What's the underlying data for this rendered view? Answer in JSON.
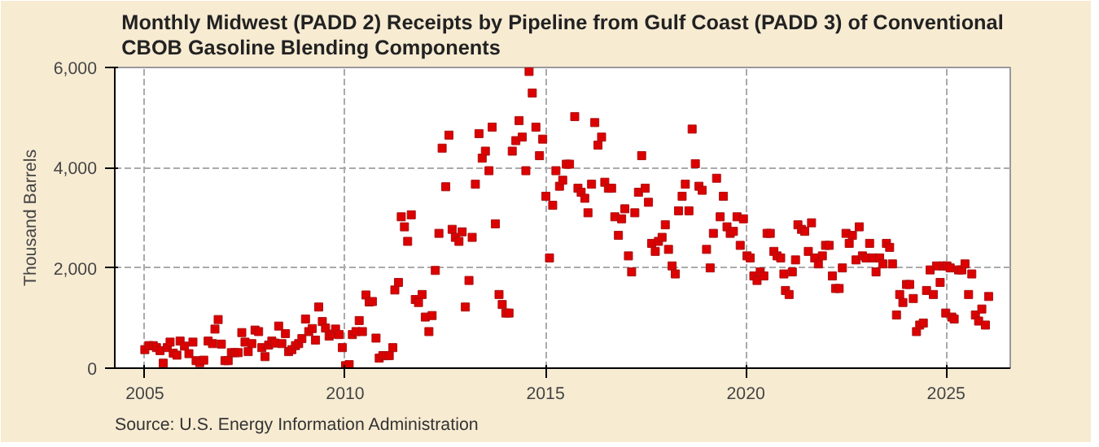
{
  "chart_data": {
    "type": "scatter",
    "title": "Monthly Midwest (PADD 2) Receipts by Pipeline from Gulf Coast (PADD 3) of Conventional CBOB Gasoline Blending Components",
    "ylabel": "Thousand Barrels",
    "annotations": [
      "Source: U.S. Energy Information Administration"
    ],
    "xlim": [
      2004.25,
      2026.6
    ],
    "xticks": [
      2005,
      2010,
      2015,
      2020,
      2025
    ],
    "ylim": [
      0,
      6000
    ],
    "yticks": [
      0,
      {
        "value": 2000,
        "label": "2,000"
      },
      {
        "value": 4000,
        "label": "4,000"
      },
      {
        "value": 6000,
        "label": "6,000"
      }
    ],
    "grid": true,
    "marker": "square",
    "x": [
      2005.0,
      2005.1,
      2005.21,
      2005.29,
      2005.38,
      2005.46,
      2005.56,
      2005.63,
      2005.71,
      2005.8,
      2005.88,
      2005.99,
      2006.1,
      2006.2,
      2006.28,
      2006.37,
      2006.47,
      2006.58,
      2006.69,
      2006.75,
      2006.83,
      2006.91,
      2007.0,
      2007.08,
      2007.16,
      2007.25,
      2007.33,
      2007.42,
      2007.5,
      2007.58,
      2007.67,
      2007.75,
      2007.84,
      2007.92,
      2008.0,
      2008.09,
      2008.17,
      2008.25,
      2008.34,
      2008.42,
      2008.51,
      2008.59,
      2008.67,
      2008.76,
      2008.84,
      2008.92,
      2009.01,
      2009.09,
      2009.18,
      2009.26,
      2009.34,
      2009.43,
      2009.51,
      2009.6,
      2009.68,
      2009.76,
      2009.85,
      2009.93,
      2010.01,
      2010.1,
      2010.18,
      2010.27,
      2010.35,
      2010.43,
      2010.52,
      2010.6,
      2010.68,
      2010.77,
      2010.85,
      2010.94,
      2011.02,
      2011.1,
      2011.19,
      2011.24,
      2011.33,
      2011.4,
      2011.48,
      2011.56,
      2011.65,
      2011.75,
      2011.83,
      2011.92,
      2012.0,
      2012.09,
      2012.17,
      2012.25,
      2012.34,
      2012.42,
      2012.51,
      2012.59,
      2012.67,
      2012.75,
      2012.84,
      2012.92,
      2013.0,
      2013.09,
      2013.17,
      2013.25,
      2013.34,
      2013.42,
      2013.5,
      2013.59,
      2013.67,
      2013.75,
      2013.84,
      2013.92,
      2014.01,
      2014.09,
      2014.17,
      2014.26,
      2014.34,
      2014.42,
      2014.51,
      2014.59,
      2014.67,
      2014.76,
      2014.85,
      2014.93,
      2015.01,
      2015.1,
      2015.18,
      2015.26,
      2015.35,
      2015.43,
      2015.52,
      2015.6,
      2015.73,
      2015.81,
      2015.89,
      2015.98,
      2016.06,
      2016.15,
      2016.23,
      2016.31,
      2016.4,
      2016.48,
      2016.57,
      2016.65,
      2016.73,
      2016.82,
      2016.9,
      2016.98,
      2017.07,
      2017.15,
      2017.23,
      2017.32,
      2017.4,
      2017.49,
      2017.57,
      2017.65,
      2017.74,
      2017.82,
      2017.91,
      2017.99,
      2018.07,
      2018.16,
      2018.24,
      2018.32,
      2018.41,
      2018.49,
      2018.58,
      2018.66,
      2018.74,
      2018.83,
      2018.91,
      2019.02,
      2019.11,
      2019.19,
      2019.27,
      2019.36,
      2019.44,
      2019.53,
      2019.61,
      2019.69,
      2019.78,
      2019.86,
      2019.94,
      2020.03,
      2020.11,
      2020.2,
      2020.28,
      2020.36,
      2020.45,
      2020.53,
      2020.61,
      2020.7,
      2020.78,
      2020.87,
      2020.95,
      2020.99,
      2021.08,
      2021.16,
      2021.24,
      2021.3,
      2021.39,
      2021.47,
      2021.56,
      2021.64,
      2021.72,
      2021.81,
      2021.91,
      2021.99,
      2022.08,
      2022.16,
      2022.24,
      2022.33,
      2022.41,
      2022.5,
      2022.58,
      2022.66,
      2022.75,
      2022.83,
      2022.91,
      2023.0,
      2023.09,
      2023.17,
      2023.25,
      2023.34,
      2023.42,
      2023.51,
      2023.59,
      2023.66,
      2023.76,
      2023.84,
      2023.92,
      2024.01,
      2024.09,
      2024.18,
      2024.26,
      2024.34,
      2024.43,
      2024.51,
      2024.6,
      2024.68,
      2024.76,
      2024.85,
      2024.93,
      2024.99,
      2025.02,
      2025.1,
      2025.14,
      2025.2,
      2025.31,
      2025.39,
      2025.47,
      2025.56,
      2025.64,
      2025.73,
      2025.81,
      2025.89,
      2025.98,
      2026.06
    ],
    "series": [
      {
        "color": "#dd0000",
        "values": [
          370,
          450,
          450,
          410,
          350,
          100,
          410,
          520,
          300,
          260,
          540,
          440,
          290,
          520,
          150,
          110,
          160,
          540,
          490,
          780,
          970,
          480,
          150,
          150,
          310,
          310,
          310,
          710,
          520,
          330,
          490,
          760,
          730,
          410,
          230,
          460,
          540,
          500,
          840,
          490,
          690,
          330,
          370,
          450,
          490,
          590,
          980,
          730,
          790,
          560,
          1220,
          930,
          800,
          640,
          680,
          780,
          670,
          410,
          50,
          70,
          670,
          730,
          950,
          730,
          1460,
          1320,
          1330,
          600,
          200,
          250,
          250,
          250,
          410,
          1560,
          1710,
          3020,
          2820,
          2530,
          3060,
          1370,
          1310,
          1470,
          1020,
          730,
          1050,
          1950,
          2690,
          4390,
          3620,
          4650,
          2770,
          2610,
          2530,
          2720,
          1220,
          1750,
          2610,
          3670,
          4680,
          4190,
          4330,
          3940,
          4810,
          2880,
          1470,
          1270,
          1100,
          1100,
          4330,
          4540,
          4940,
          4610,
          3940,
          5920,
          5490,
          4810,
          4240,
          4570,
          3430,
          2200,
          3250,
          3940,
          3630,
          3750,
          4070,
          4070,
          5020,
          3590,
          3510,
          3390,
          3100,
          3670,
          4900,
          4450,
          4610,
          3710,
          3590,
          3590,
          3020,
          2650,
          2980,
          3180,
          2240,
          1920,
          3100,
          3510,
          4240,
          3590,
          3310,
          2490,
          2330,
          2530,
          2610,
          2860,
          2370,
          2040,
          1880,
          3140,
          3430,
          3670,
          3140,
          4770,
          4080,
          3630,
          3550,
          2370,
          2000,
          2690,
          3790,
          3020,
          3430,
          2820,
          2690,
          2730,
          3020,
          2450,
          2980,
          2240,
          2200,
          1840,
          1750,
          1920,
          1840,
          2690,
          2690,
          2330,
          2240,
          2200,
          1880,
          1550,
          1470,
          1920,
          2160,
          2860,
          2770,
          2730,
          2330,
          2900,
          2200,
          2080,
          2240,
          2450,
          2450,
          1840,
          1590,
          1590,
          2000,
          2690,
          2490,
          2650,
          2160,
          2820,
          2240,
          2200,
          2490,
          2200,
          1920,
          2200,
          2080,
          2490,
          2410,
          2080,
          1060,
          1470,
          1310,
          1670,
          1670,
          1390,
          730,
          860,
          900,
          1550,
          1960,
          1470,
          2040,
          1710,
          2040,
          1100,
          2040,
          2000,
          1020,
          980,
          1960,
          1960,
          2080,
          1470,
          1880,
          1060,
          940,
          1180,
          860,
          1430
        ]
      }
    ]
  }
}
